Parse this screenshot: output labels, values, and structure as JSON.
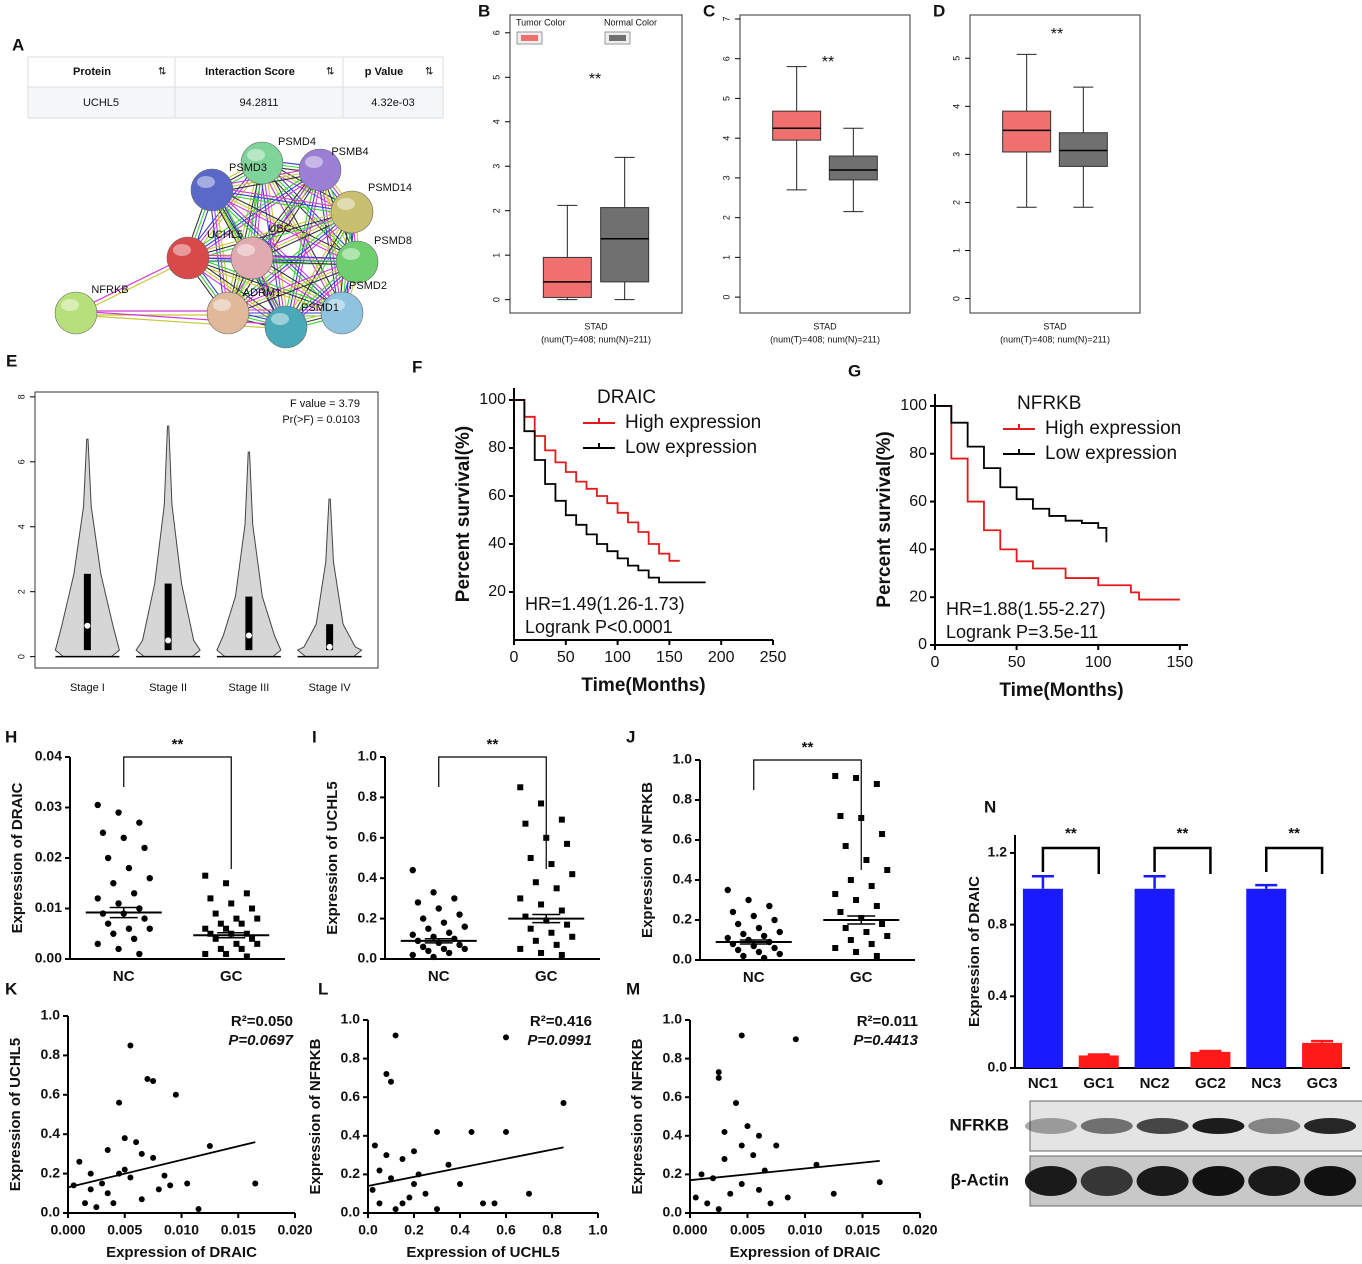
{
  "panel_a": {
    "panel": "A",
    "table": {
      "header": [
        "Protein",
        "Interaction Score",
        "p Value"
      ],
      "rows": [
        [
          "UCHL5",
          "94.2811",
          "4.32e-03"
        ]
      ]
    },
    "network": {
      "nodes": [
        {
          "label": "PSMD4"
        },
        {
          "label": "PSMB4"
        },
        {
          "label": "PSMD3"
        },
        {
          "label": "PSMD14"
        },
        {
          "label": "UCHL5"
        },
        {
          "label": "UBC"
        },
        {
          "label": "PSMD8"
        },
        {
          "label": "ADRM1"
        },
        {
          "label": "PSMD2"
        },
        {
          "label": "PSMD1"
        },
        {
          "label": "NFRKB"
        }
      ]
    }
  },
  "chart_data": [
    {
      "type": "box",
      "panel": "B",
      "xlabel": "STAD",
      "xlabel_sub": "(num(T)=408; num(N)=211)",
      "annotation": "**",
      "ylim": [
        -0.3,
        6.4
      ],
      "yticks": [
        0,
        1,
        2,
        3,
        4,
        5,
        6
      ],
      "series": [
        {
          "name": "Tumor Color",
          "color": "#f07070",
          "whisker_low": 0,
          "q1": 0.05,
          "median": 0.4,
          "q3": 0.95,
          "whisker_high": 2.12
        },
        {
          "name": "Normal Color",
          "color": "#707070",
          "whisker_low": 0,
          "q1": 0.4,
          "median": 1.37,
          "q3": 2.07,
          "whisker_high": 3.2
        }
      ]
    },
    {
      "type": "box",
      "panel": "C",
      "xlabel": "STAD",
      "xlabel_sub": "(num(T)=408; num(N)=211)",
      "annotation": "**",
      "ylim": [
        -0.4,
        7.1
      ],
      "yticks": [
        0,
        1,
        2,
        3,
        4,
        5,
        6,
        7
      ],
      "series": [
        {
          "color": "#f07070",
          "whisker_low": 2.7,
          "q1": 3.95,
          "median": 4.25,
          "q3": 4.68,
          "whisker_high": 5.8
        },
        {
          "color": "#707070",
          "whisker_low": 2.15,
          "q1": 2.95,
          "median": 3.2,
          "q3": 3.55,
          "whisker_high": 4.25
        }
      ]
    },
    {
      "type": "box",
      "panel": "D",
      "xlabel": "STAD",
      "xlabel_sub": "(num(T)=408; num(N)=211)",
      "annotation": "**",
      "ylim": [
        -0.3,
        5.9
      ],
      "yticks": [
        0,
        1,
        2,
        3,
        4,
        5
      ],
      "series": [
        {
          "color": "#f07070",
          "whisker_low": 1.9,
          "q1": 3.05,
          "median": 3.5,
          "q3": 3.9,
          "whisker_high": 5.08
        },
        {
          "color": "#707070",
          "whisker_low": 1.9,
          "q1": 2.75,
          "median": 3.08,
          "q3": 3.45,
          "whisker_high": 4.4
        }
      ]
    },
    {
      "type": "violin",
      "panel": "E",
      "categories": [
        "Stage I",
        "Stage II",
        "Stage III",
        "Stage IV"
      ],
      "annotations": [
        "F value = 3.79",
        "Pr(>F) = 0.0103"
      ],
      "color": "#d6d6d6",
      "ylim": [
        -0.35,
        8.15
      ],
      "yticks": [
        0,
        2,
        4,
        6,
        8
      ],
      "series": [
        {
          "min": 0,
          "q1": 0.2,
          "median": 0.95,
          "q3": 2.55,
          "max": 6.7
        },
        {
          "min": 0,
          "q1": 0.2,
          "median": 0.5,
          "q3": 2.25,
          "max": 7.1
        },
        {
          "min": 0,
          "q1": 0.2,
          "median": 0.65,
          "q3": 1.85,
          "max": 6.3
        },
        {
          "min": 0,
          "q1": 0.2,
          "median": 0.3,
          "q3": 1.0,
          "max": 4.85
        }
      ]
    },
    {
      "type": "line",
      "panel": "F",
      "legend_title": "DRAIC",
      "xlabel": "Time(Months)",
      "ylabel": "Percent survival(%)",
      "annotations": [
        "HR=1.49(1.26-1.73)",
        "Logrank P<0.0001"
      ],
      "xlim": [
        0,
        250
      ],
      "xticks": [
        0,
        50,
        100,
        150,
        200,
        250
      ],
      "ylim": [
        0,
        105
      ],
      "yticks": [
        20,
        40,
        60,
        80,
        100
      ],
      "series": [
        {
          "name": "High expression",
          "color": "#e31a1c",
          "x": [
            0,
            10,
            20,
            30,
            40,
            50,
            60,
            70,
            80,
            90,
            100,
            110,
            120,
            130,
            140,
            150,
            160
          ],
          "values": [
            100,
            93,
            85,
            79,
            74,
            70,
            66,
            63,
            60,
            57,
            53,
            49,
            45,
            40,
            36,
            33,
            33
          ]
        },
        {
          "name": "Low expression",
          "color": "#000000",
          "x": [
            0,
            10,
            20,
            30,
            40,
            50,
            60,
            70,
            80,
            90,
            100,
            110,
            120,
            130,
            140,
            160,
            185
          ],
          "values": [
            100,
            87,
            75,
            65,
            58,
            52,
            48,
            44,
            40,
            37,
            34,
            31,
            29,
            26,
            24,
            24,
            24
          ]
        }
      ]
    },
    {
      "type": "line",
      "panel": "G",
      "legend_title": "NFRKB",
      "xlabel": "Time(Months)",
      "ylabel": "Percent survival(%)",
      "annotations": [
        "HR=1.88(1.55-2.27)",
        "Logrank P=3.5e-11"
      ],
      "xlim": [
        0,
        155
      ],
      "xticks": [
        0,
        50,
        100,
        150
      ],
      "ylim": [
        0,
        105
      ],
      "yticks": [
        0,
        20,
        40,
        60,
        80,
        100
      ],
      "series": [
        {
          "name": "High expression",
          "color": "#e31a1c",
          "x": [
            0,
            10,
            20,
            30,
            40,
            50,
            60,
            80,
            100,
            120,
            125,
            150
          ],
          "values": [
            100,
            78,
            60,
            48,
            40,
            35,
            32,
            28,
            25,
            22,
            19,
            19
          ]
        },
        {
          "name": "Low expression",
          "color": "#000000",
          "x": [
            0,
            10,
            20,
            30,
            40,
            50,
            60,
            70,
            80,
            90,
            100,
            105
          ],
          "values": [
            100,
            93,
            83,
            74,
            66,
            61,
            57,
            54,
            52,
            51,
            49,
            43
          ]
        }
      ]
    },
    {
      "type": "dotplot",
      "panel": "H",
      "categories": [
        "NC",
        "GC"
      ],
      "markers": [
        "circle",
        "square"
      ],
      "ylabel": "Expression of DRAIC",
      "annotation": "**",
      "ylim": [
        0,
        0.04
      ],
      "yticks": [
        {
          "value": 0,
          "label": "0.00"
        },
        0.01,
        0.02,
        0.03,
        0.04
      ],
      "groups": [
        {
          "values": [
            0.0305,
            0.029,
            0.027,
            0.025,
            0.024,
            0.022,
            0.02,
            0.018,
            0.016,
            0.015,
            0.013,
            0.012,
            0.011,
            0.01,
            0.009,
            0.009,
            0.008,
            0.007,
            0.006,
            0.006,
            0.005,
            0.004,
            0.003,
            0.002,
            0.001
          ],
          "mean": 0.0092,
          "sem": 0.001
        },
        {
          "values": [
            0.0165,
            0.015,
            0.013,
            0.012,
            0.011,
            0.01,
            0.009,
            0.008,
            0.008,
            0.007,
            0.007,
            0.006,
            0.006,
            0.005,
            0.005,
            0.005,
            0.004,
            0.004,
            0.003,
            0.003,
            0.002,
            0.002,
            0.001,
            0.001,
            0.0005
          ],
          "mean": 0.0047,
          "sem": 0.0005
        }
      ]
    },
    {
      "type": "dotplot",
      "panel": "I",
      "categories": [
        "NC",
        "GC"
      ],
      "markers": [
        "circle",
        "square"
      ],
      "ylabel": "Expression of UCHL5",
      "annotation": "**",
      "ylim": [
        0,
        1
      ],
      "yticks": [
        {
          "value": 0,
          "label": "0.0"
        },
        0.2,
        0.4,
        0.6,
        0.8,
        {
          "value": 1,
          "label": "1.0"
        }
      ],
      "groups": [
        {
          "values": [
            0.44,
            0.33,
            0.3,
            0.28,
            0.25,
            0.22,
            0.2,
            0.18,
            0.16,
            0.15,
            0.13,
            0.12,
            0.11,
            0.1,
            0.09,
            0.08,
            0.07,
            0.06,
            0.05,
            0.05,
            0.04,
            0.03,
            0.02,
            0.01
          ],
          "mean": 0.09,
          "sem": 0.01
        },
        {
          "values": [
            0.85,
            0.77,
            0.69,
            0.67,
            0.6,
            0.57,
            0.5,
            0.47,
            0.42,
            0.38,
            0.35,
            0.3,
            0.27,
            0.24,
            0.21,
            0.19,
            0.17,
            0.15,
            0.13,
            0.11,
            0.09,
            0.07,
            0.05,
            0.03,
            0.02
          ],
          "mean": 0.2,
          "sem": 0.02
        }
      ]
    },
    {
      "type": "dotplot",
      "panel": "J",
      "categories": [
        "NC",
        "GC"
      ],
      "markers": [
        "circle",
        "square"
      ],
      "ylabel": "Expression of NFRKB",
      "annotation": "**",
      "ylim": [
        0,
        1
      ],
      "yticks": [
        {
          "value": 0,
          "label": "0.0"
        },
        0.2,
        0.4,
        0.6,
        0.8,
        {
          "value": 1,
          "label": "1.0"
        }
      ],
      "groups": [
        {
          "values": [
            0.35,
            0.3,
            0.27,
            0.24,
            0.22,
            0.2,
            0.18,
            0.16,
            0.14,
            0.13,
            0.12,
            0.11,
            0.1,
            0.09,
            0.08,
            0.07,
            0.06,
            0.05,
            0.04,
            0.03,
            0.02,
            0.01
          ],
          "mean": 0.09,
          "sem": 0.01
        },
        {
          "values": [
            0.92,
            0.91,
            0.88,
            0.72,
            0.71,
            0.63,
            0.57,
            0.5,
            0.45,
            0.4,
            0.37,
            0.33,
            0.3,
            0.27,
            0.24,
            0.21,
            0.18,
            0.16,
            0.14,
            0.12,
            0.1,
            0.08,
            0.06,
            0.04,
            0.02
          ],
          "mean": 0.2,
          "sem": 0.02
        }
      ]
    },
    {
      "type": "scatter",
      "panel": "K",
      "xlabel": "Expression of DRAIC",
      "ylabel": "Expression of UCHL5",
      "annotations": [
        "R²=0.050",
        "P=0.0697"
      ],
      "xlim": [
        0,
        0.02
      ],
      "xticks": [
        {
          "value": 0,
          "label": "0.000"
        },
        0.005,
        {
          "value": 0.01,
          "label": "0.010"
        },
        0.015,
        {
          "value": 0.02,
          "label": "0.020"
        }
      ],
      "ylim": [
        0,
        1
      ],
      "yticks": [
        {
          "value": 0,
          "label": "0.0"
        },
        0.2,
        0.4,
        0.6,
        0.8,
        {
          "value": 1,
          "label": "1.0"
        }
      ],
      "x": [
        0.0045,
        0.0055,
        0.007,
        0.0075,
        0.0095,
        0.005,
        0.006,
        0.0065,
        0.001,
        0.002,
        0.003,
        0.0035,
        0.004,
        0.005,
        0.0055,
        0.0075,
        0.008,
        0.009,
        0.0105,
        0.0125,
        0.0165,
        0.0015,
        0.0025,
        0.0035,
        0.0045,
        0.0065,
        0.0085,
        0.0115,
        0.0005,
        0.002
      ],
      "values": [
        0.56,
        0.85,
        0.68,
        0.67,
        0.6,
        0.38,
        0.36,
        0.3,
        0.26,
        0.2,
        0.15,
        0.1,
        0.05,
        0.22,
        0.18,
        0.28,
        0.12,
        0.14,
        0.15,
        0.34,
        0.15,
        0.05,
        0.03,
        0.32,
        0.2,
        0.07,
        0.19,
        0.02,
        0.14,
        0.12
      ],
      "fit_line": {
        "x": [
          0,
          0.0165
        ],
        "values": [
          0.13,
          0.36
        ]
      }
    },
    {
      "type": "scatter",
      "panel": "L",
      "xlabel": "Expression of UCHL5",
      "ylabel": "Expression of NFRKB",
      "annotations": [
        "R²=0.416",
        "P=0.0991"
      ],
      "xlim": [
        0,
        1
      ],
      "xticks": [
        {
          "value": 0,
          "label": "0.0"
        },
        0.2,
        0.4,
        0.6,
        0.8,
        {
          "value": 1,
          "label": "1.0"
        }
      ],
      "ylim": [
        0,
        1
      ],
      "yticks": [
        {
          "value": 0,
          "label": "0.0"
        },
        0.2,
        0.4,
        0.6,
        0.8,
        {
          "value": 1,
          "label": "1.0"
        }
      ],
      "x": [
        0.12,
        0.08,
        0.1,
        0.6,
        0.85,
        0.3,
        0.45,
        0.6,
        0.2,
        0.15,
        0.35,
        0.05,
        0.1,
        0.2,
        0.25,
        0.02,
        0.05,
        0.15,
        0.3,
        0.5,
        0.7,
        0.4,
        0.12,
        0.08,
        0.22,
        0.55,
        0.03,
        0.18
      ],
      "values": [
        0.92,
        0.72,
        0.68,
        0.91,
        0.57,
        0.42,
        0.42,
        0.42,
        0.32,
        0.28,
        0.25,
        0.22,
        0.18,
        0.15,
        0.1,
        0.12,
        0.05,
        0.05,
        0.02,
        0.05,
        0.1,
        0.15,
        0.02,
        0.3,
        0.2,
        0.05,
        0.35,
        0.08
      ],
      "fit_line": {
        "x": [
          0,
          0.85
        ],
        "values": [
          0.14,
          0.34
        ]
      }
    },
    {
      "type": "scatter",
      "panel": "M",
      "xlabel": "Expression of DRAIC",
      "ylabel": "Expression of NFRKB",
      "annotations": [
        "R²=0.011",
        "P=0.4413"
      ],
      "xlim": [
        0,
        0.02
      ],
      "xticks": [
        {
          "value": 0,
          "label": "0.000"
        },
        0.005,
        {
          "value": 0.01,
          "label": "0.010"
        },
        0.015,
        {
          "value": 0.02,
          "label": "0.020"
        }
      ],
      "ylim": [
        0,
        1
      ],
      "yticks": [
        {
          "value": 0,
          "label": "0.0"
        },
        0.2,
        0.4,
        0.6,
        0.8,
        {
          "value": 1,
          "label": "1.0"
        }
      ],
      "x": [
        0.0045,
        0.0025,
        0.0025,
        0.0092,
        0.004,
        0.005,
        0.003,
        0.006,
        0.0075,
        0.0045,
        0.0055,
        0.001,
        0.002,
        0.0035,
        0.0005,
        0.0015,
        0.0025,
        0.006,
        0.0065,
        0.0085,
        0.011,
        0.0125,
        0.0165,
        0.007,
        0.0045,
        0.003
      ],
      "values": [
        0.92,
        0.73,
        0.7,
        0.9,
        0.57,
        0.45,
        0.42,
        0.4,
        0.35,
        0.35,
        0.3,
        0.2,
        0.18,
        0.1,
        0.08,
        0.05,
        0.02,
        0.12,
        0.22,
        0.08,
        0.25,
        0.1,
        0.16,
        0.05,
        0.15,
        0.28
      ],
      "fit_line": {
        "x": [
          0,
          0.0165
        ],
        "values": [
          0.17,
          0.27
        ]
      }
    },
    {
      "type": "bar",
      "panel": "N",
      "categories": [
        "NC1",
        "GC1",
        "NC2",
        "GC2",
        "NC3",
        "GC3"
      ],
      "ylabel": "Expression of DRAIC",
      "values": [
        1,
        0.07,
        1,
        0.09,
        1,
        0.14
      ],
      "errors": [
        0.07,
        0.005,
        0.07,
        0.005,
        0.02,
        0.01
      ],
      "colors": [
        "#1a1aff",
        "#ff1a1a",
        "#1a1aff",
        "#ff1a1a",
        "#1a1aff",
        "#ff1a1a"
      ],
      "brackets": [
        "**",
        "**",
        "**"
      ],
      "ylim": [
        0,
        1.3
      ],
      "yticks": [
        {
          "value": 0,
          "label": "0.0"
        },
        0.4,
        0.8,
        1.2
      ],
      "blot": {
        "rows": [
          {
            "label": "NFRKB",
            "intensity": [
              0.35,
              0.55,
              0.75,
              0.95,
              0.45,
              0.9
            ]
          },
          {
            "label": "β-Actin",
            "intensity": [
              0.95,
              0.8,
              0.95,
              1,
              0.95,
              1
            ]
          }
        ]
      }
    }
  ]
}
